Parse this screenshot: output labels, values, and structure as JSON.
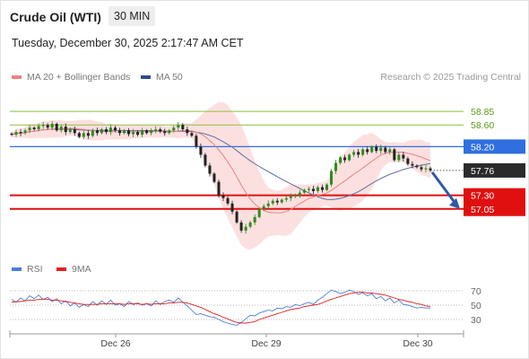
{
  "header": {
    "title": "Crude Oil (WTI)",
    "timeframe": "30 MIN",
    "datetime": "Tuesday, December 30, 2025 2:17:47 AM CET"
  },
  "legend": {
    "items": [
      {
        "label": "MA 20 + Bollinger Bands",
        "color": "#f08080"
      },
      {
        "label": "MA 50",
        "color": "#2b4e8c"
      }
    ],
    "credit": "Research © 2025 Trading Central"
  },
  "rsi_legend": {
    "items": [
      {
        "label": "RSI",
        "color": "#4a7fd9"
      },
      {
        "label": "9MA",
        "color": "#e02020"
      }
    ]
  },
  "levels": [
    {
      "value": "58.85",
      "kind": "resistance-green"
    },
    {
      "value": "58.60",
      "kind": "resistance-green"
    },
    {
      "value": "58.20",
      "kind": "pivot-blue"
    },
    {
      "value": "57.76",
      "kind": "last-price"
    },
    {
      "value": "57.30",
      "kind": "target-red"
    },
    {
      "value": "57.05",
      "kind": "target-red"
    }
  ],
  "chart_data": [
    {
      "type": "candlestick",
      "ylim": [
        56.35,
        59.25
      ],
      "x_labels": [
        "Dec 26",
        "Dec 29",
        "Dec 30"
      ],
      "last_price": 57.76,
      "levels": [
        58.85,
        58.6,
        58.2,
        57.3,
        57.05
      ],
      "closes": [
        58.42,
        58.47,
        58.45,
        58.5,
        58.55,
        58.52,
        58.58,
        58.6,
        58.55,
        58.62,
        58.5,
        58.57,
        58.47,
        58.52,
        58.45,
        58.38,
        58.45,
        58.4,
        58.5,
        58.45,
        58.52,
        58.47,
        58.55,
        58.5,
        58.45,
        58.5,
        58.43,
        58.47,
        58.42,
        58.5,
        58.45,
        58.5,
        58.52,
        58.48,
        58.45,
        58.5,
        58.55,
        58.6,
        58.52,
        58.45,
        58.4,
        58.2,
        58.05,
        57.85,
        57.7,
        57.55,
        57.3,
        57.25,
        57.15,
        57.0,
        56.8,
        56.65,
        56.72,
        56.8,
        56.9,
        57.05,
        57.1,
        57.15,
        57.2,
        57.17,
        57.22,
        57.25,
        57.28,
        57.3,
        57.35,
        57.4,
        57.42,
        57.38,
        57.45,
        57.4,
        57.5,
        57.75,
        57.9,
        58.0,
        57.95,
        58.05,
        58.1,
        58.05,
        58.15,
        58.1,
        58.2,
        58.12,
        58.18,
        58.1,
        58.15,
        57.95,
        58.05,
        57.98,
        57.88,
        57.85,
        57.82,
        57.78,
        57.8,
        57.76
      ],
      "series": [
        {
          "name": "MA 20 + Bollinger Bands"
        },
        {
          "name": "MA 50"
        }
      ]
    },
    {
      "type": "line",
      "ylim": [
        15,
        85
      ],
      "y_ticks": [
        70,
        50,
        30
      ],
      "rsi": [
        58,
        54,
        60,
        56,
        63,
        59,
        64,
        58,
        61,
        55,
        59,
        52,
        56,
        49,
        53,
        47,
        51,
        48,
        55,
        50,
        56,
        51,
        57,
        50,
        52,
        48,
        55,
        51,
        53,
        50,
        52,
        49,
        56,
        51,
        55,
        57,
        54,
        60,
        54,
        49,
        43,
        37,
        38,
        36,
        34,
        33,
        30,
        27,
        25,
        23,
        22,
        26,
        31,
        36,
        35,
        39,
        41,
        43,
        42,
        46,
        45,
        48,
        47,
        51,
        49,
        52,
        54,
        51,
        57,
        61,
        66,
        71,
        69,
        66,
        68,
        71,
        69,
        65,
        67,
        63,
        66,
        59,
        62,
        56,
        60,
        53,
        57,
        51,
        50,
        48,
        46,
        47,
        46,
        46
      ],
      "ma9": [
        54,
        55,
        55,
        56,
        57,
        57,
        58,
        58,
        58,
        57,
        57,
        56,
        55,
        54,
        53,
        52,
        51,
        51,
        51,
        51,
        52,
        52,
        52,
        52,
        52,
        51,
        52,
        52,
        52,
        51,
        52,
        51,
        52,
        52,
        52,
        53,
        53,
        54,
        54,
        53,
        51,
        49,
        47,
        44,
        41,
        38,
        36,
        33,
        31,
        28,
        26,
        25,
        25,
        26,
        27,
        30,
        32,
        34,
        36,
        38,
        40,
        42,
        44,
        45,
        46,
        48,
        49,
        50,
        51,
        53,
        56,
        58,
        60,
        62,
        64,
        66,
        67,
        68,
        68,
        67,
        67,
        66,
        65,
        64,
        62,
        60,
        58,
        57,
        55,
        54,
        52,
        51,
        49,
        48
      ],
      "series": [
        {
          "name": "RSI"
        },
        {
          "name": "9MA"
        }
      ]
    }
  ]
}
